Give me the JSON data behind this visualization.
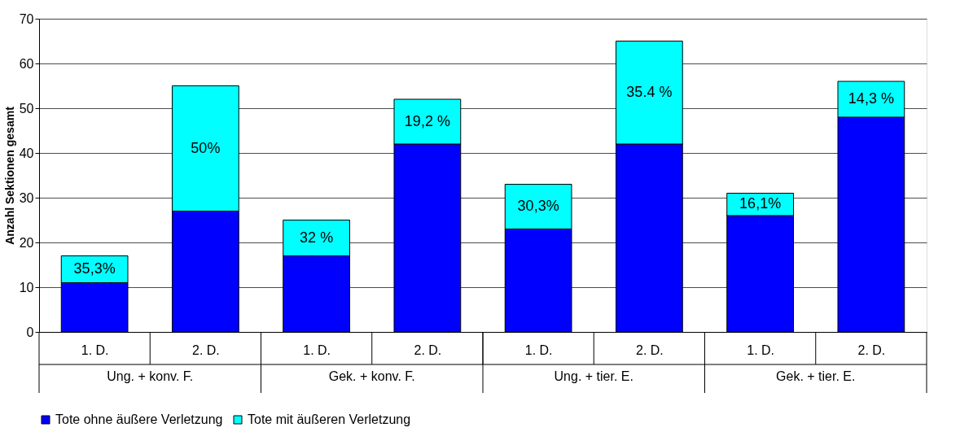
{
  "chart_data": {
    "type": "bar",
    "stacked": true,
    "ylabel": "Anzahl Sektionen gesamt",
    "categories": [
      "1. D.",
      "2. D.",
      "1. D.",
      "2. D.",
      "1. D.",
      "2. D.",
      "1. D.",
      "2. D."
    ],
    "series": [
      {
        "name": "Tote ohne äußere Verletzung",
        "color": "#0000ff",
        "values": [
          11,
          27,
          17,
          42,
          23,
          42,
          26,
          48
        ]
      },
      {
        "name": "Tote mit äußeren Verletzung",
        "color": "#00ffff",
        "values": [
          6,
          28,
          8,
          10,
          10,
          23,
          5,
          8
        ]
      }
    ],
    "annotations": [
      "Ung. + konv. F.",
      "Gek. + konv. F.",
      "Ung. + tier. E.",
      "Gek. + tier. E.",
      "35,3%",
      "50%",
      "32 %",
      "19,2 %",
      "30,3%",
      "35.4 %",
      "16,1%",
      "14,3 %"
    ],
    "ylim": [
      0,
      70
    ],
    "yticks": [
      0,
      10,
      20,
      30,
      40,
      50,
      60,
      70
    ],
    "grid": "y",
    "legend": "bottom"
  }
}
